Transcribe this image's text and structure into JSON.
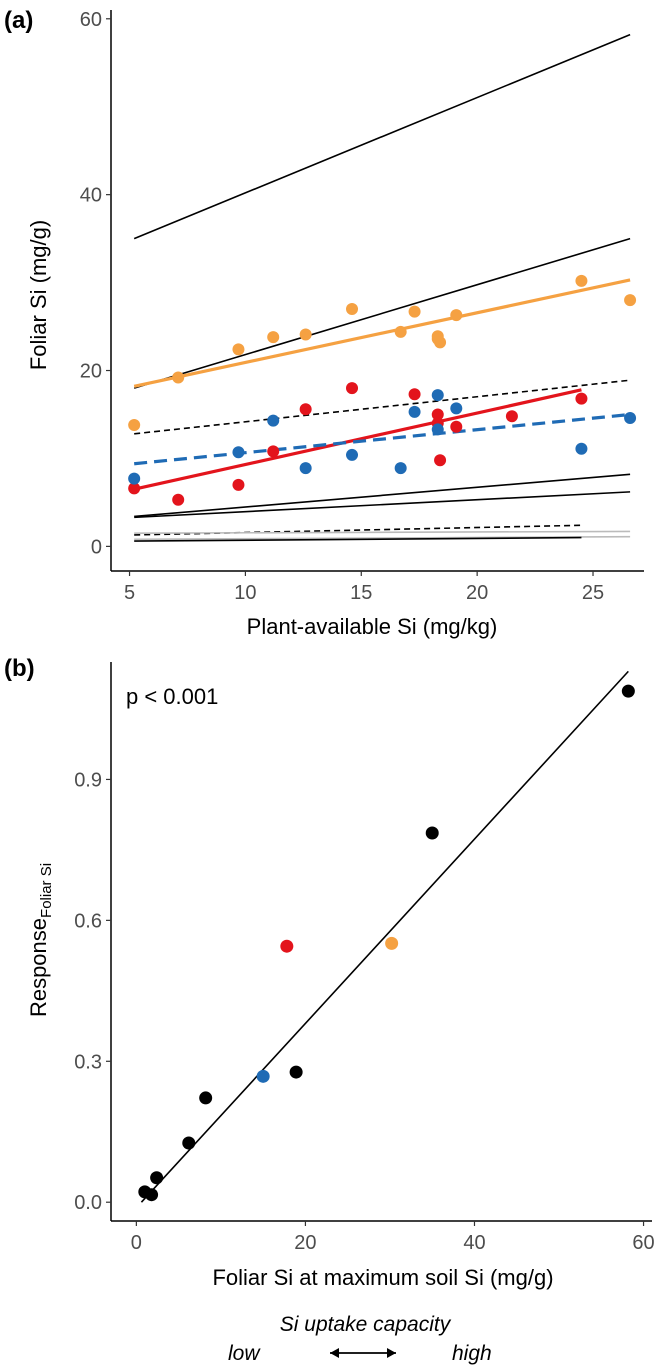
{
  "chart_data": [
    {
      "panel": "(a)",
      "type": "scatter",
      "xlabel": "Plant-available Si (mg/kg)",
      "ylabel": "Foliar Si (mg/g)",
      "xlim": [
        4.2,
        27.2
      ],
      "ylim": [
        -2.8,
        61
      ],
      "xticks": [
        5,
        10,
        15,
        20,
        25
      ],
      "yticks": [
        0,
        20,
        40,
        60
      ],
      "grid": false,
      "series": [
        {
          "color": "#f5a142",
          "x": [
            5.2,
            7.1,
            9.7,
            11.2,
            12.6,
            14.6,
            16.7,
            17.3,
            18.3,
            18.3,
            18.4,
            19.1,
            24.5,
            26.6
          ],
          "y": [
            13.8,
            19.2,
            22.4,
            23.8,
            24.1,
            27.0,
            24.4,
            26.7,
            23.9,
            23.6,
            23.2,
            26.3,
            30.2,
            28.0
          ]
        },
        {
          "color": "#e3141c",
          "x": [
            5.2,
            7.1,
            9.7,
            11.2,
            12.6,
            14.6,
            17.3,
            18.3,
            18.3,
            18.4,
            19.1,
            21.5,
            24.5
          ],
          "y": [
            6.6,
            5.3,
            7.0,
            10.8,
            15.6,
            18.0,
            17.3,
            15.0,
            14.0,
            9.8,
            13.6,
            14.8,
            16.8
          ]
        },
        {
          "color": "#1f6bb5",
          "x": [
            5.2,
            9.7,
            11.2,
            12.6,
            14.6,
            16.7,
            17.3,
            18.3,
            18.3,
            19.1,
            24.5,
            26.6
          ],
          "y": [
            7.7,
            10.7,
            14.3,
            8.9,
            10.4,
            8.9,
            15.3,
            17.2,
            13.3,
            15.7,
            11.1,
            14.6
          ]
        }
      ],
      "fit_lines": [
        {
          "color": "#000000",
          "dash": "solid",
          "x": [
            5.2,
            26.6
          ],
          "y": [
            35.0,
            58.2
          ]
        },
        {
          "color": "#000000",
          "dash": "solid",
          "x": [
            5.2,
            26.6
          ],
          "y": [
            18.0,
            35.0
          ]
        },
        {
          "color": "#f5a142",
          "dash": "solid",
          "x": [
            5.2,
            26.6
          ],
          "y": [
            18.2,
            30.3
          ]
        },
        {
          "color": "#000000",
          "dash": "dashed",
          "x": [
            5.2,
            26.6
          ],
          "y": [
            12.8,
            18.9
          ]
        },
        {
          "color": "#e3141c",
          "dash": "solid",
          "x": [
            5.2,
            24.5
          ],
          "y": [
            6.5,
            17.8
          ]
        },
        {
          "color": "#1f6bb5",
          "dash": "dashed",
          "x": [
            5.2,
            26.6
          ],
          "y": [
            9.4,
            15.0
          ]
        },
        {
          "color": "#000000",
          "dash": "solid",
          "x": [
            5.2,
            26.6
          ],
          "y": [
            3.4,
            8.2
          ]
        },
        {
          "color": "#000000",
          "dash": "solid",
          "x": [
            5.2,
            26.6
          ],
          "y": [
            3.3,
            6.2
          ]
        },
        {
          "color": "#000000",
          "dash": "dashed",
          "x": [
            5.2,
            24.5
          ],
          "y": [
            1.3,
            2.4
          ]
        },
        {
          "color": "#bbbbbb",
          "dash": "solid",
          "x": [
            5.2,
            26.6
          ],
          "y": [
            1.5,
            1.7
          ]
        },
        {
          "color": "#bbbbbb",
          "dash": "solid",
          "x": [
            5.2,
            26.6
          ],
          "y": [
            0.8,
            1.1
          ]
        },
        {
          "color": "#000000",
          "dash": "solid",
          "x": [
            5.2,
            24.5
          ],
          "y": [
            0.6,
            1.0
          ]
        }
      ]
    },
    {
      "panel": "(b)",
      "type": "scatter",
      "xlabel": "Foliar Si at maximum soil Si (mg/g)",
      "ylabel_main": "Response",
      "ylabel_sub": "Foliar Si",
      "xlim": [
        -3,
        61
      ],
      "ylim": [
        -0.04,
        1.15
      ],
      "xticks": [
        0,
        20,
        40,
        60
      ],
      "yticks": [
        0.0,
        0.3,
        0.6,
        0.9
      ],
      "ytick_labels": [
        "0.0",
        "0.3",
        "0.6",
        "0.9"
      ],
      "annotation": "p < 0.001",
      "grid": false,
      "points": [
        {
          "x": 1.0,
          "y": 0.022,
          "color": "#000000"
        },
        {
          "x": 1.8,
          "y": 0.016,
          "color": "#000000"
        },
        {
          "x": 2.4,
          "y": 0.052,
          "color": "#000000"
        },
        {
          "x": 6.2,
          "y": 0.126,
          "color": "#000000"
        },
        {
          "x": 8.2,
          "y": 0.222,
          "color": "#000000"
        },
        {
          "x": 15.0,
          "y": 0.268,
          "color": "#1f6bb5"
        },
        {
          "x": 17.8,
          "y": 0.545,
          "color": "#e3141c"
        },
        {
          "x": 18.9,
          "y": 0.277,
          "color": "#000000"
        },
        {
          "x": 30.2,
          "y": 0.551,
          "color": "#f5a142"
        },
        {
          "x": 35.0,
          "y": 0.786,
          "color": "#000000"
        },
        {
          "x": 58.2,
          "y": 1.088,
          "color": "#000000"
        }
      ],
      "fit_line": {
        "x": [
          0.6,
          58.2
        ],
        "y": 0.0,
        "y_end": 1.13,
        "color": "#000000"
      }
    }
  ],
  "caption_below": {
    "title": "Si uptake capacity",
    "low": "low",
    "high": "high"
  }
}
